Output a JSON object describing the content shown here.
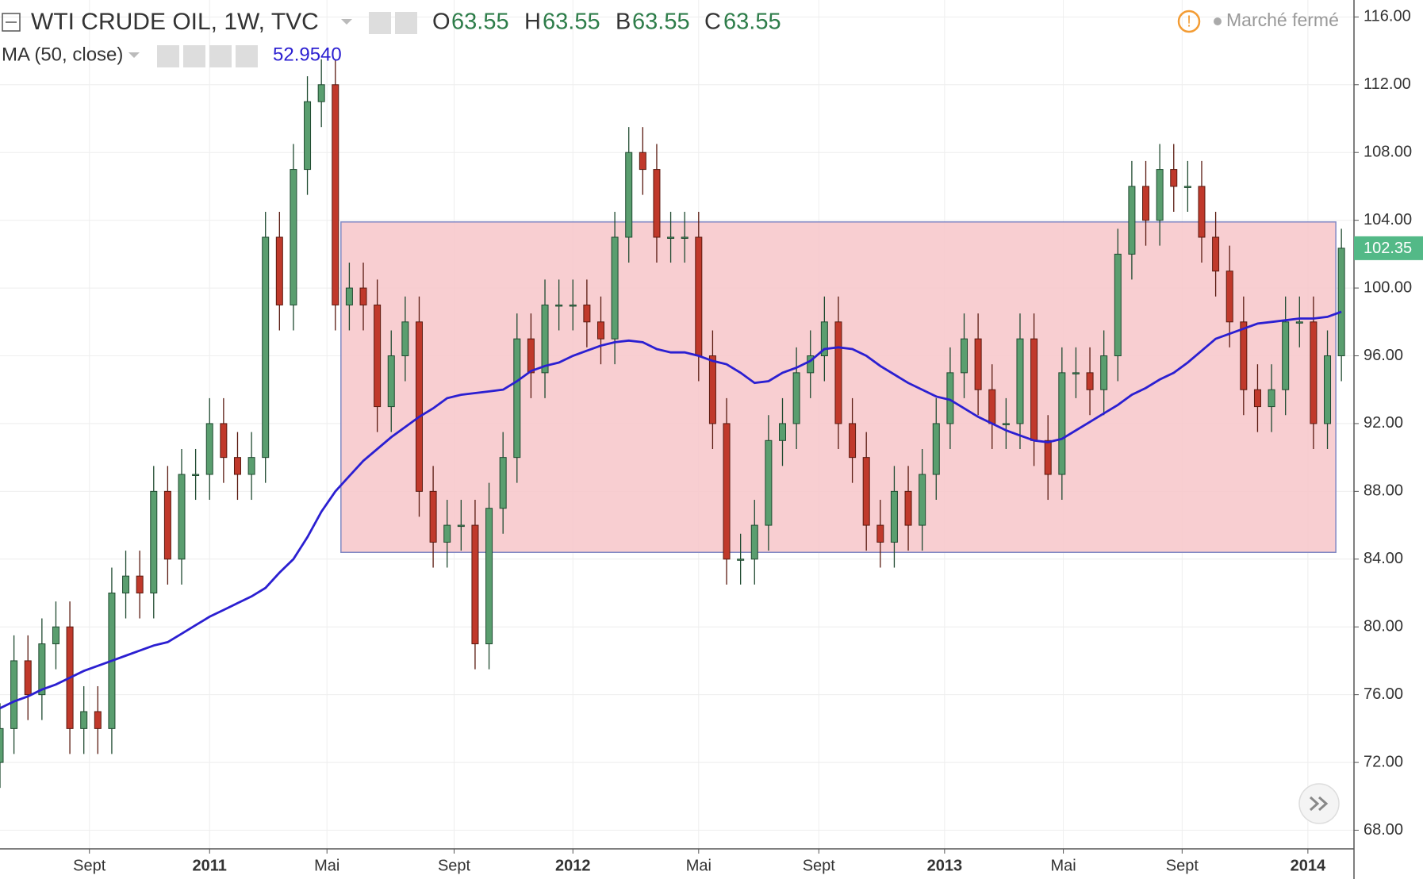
{
  "chart_data": {
    "type": "candlestick",
    "title": "WTI CRUDE OIL, 1W, TVC",
    "legend_ohlc": [
      {
        "label": "O",
        "value": 63.55
      },
      {
        "label": "H",
        "value": 63.55
      },
      {
        "label": "B",
        "value": 63.55
      },
      {
        "label": "C",
        "value": 63.55
      }
    ],
    "status": "Marché fermé",
    "up_color": "#5a9e6f",
    "down_color": "#c0392b",
    "grid": true,
    "xlim": [
      0,
      96.9
    ],
    "xticks": [
      {
        "value": 6.4,
        "label": "Sept"
      },
      {
        "value": 15,
        "label": "2011"
      },
      {
        "value": 23.4,
        "label": "Mai"
      },
      {
        "value": 32.5,
        "label": "Sept"
      },
      {
        "value": 41,
        "label": "2012"
      },
      {
        "value": 50,
        "label": "Mai"
      },
      {
        "value": 58.6,
        "label": "Sept"
      },
      {
        "value": 67.6,
        "label": "2013"
      },
      {
        "value": 76.1,
        "label": "Mai"
      },
      {
        "value": 84.6,
        "label": "Sept"
      },
      {
        "value": 93.6,
        "label": "2014"
      }
    ],
    "ylim": [
      66.9,
      117
    ],
    "yticks": [
      {
        "value": 68,
        "label": "68.00"
      },
      {
        "value": 72,
        "label": "72.00"
      },
      {
        "value": 76,
        "label": "76.00"
      },
      {
        "value": 80,
        "label": "80.00"
      },
      {
        "value": 84,
        "label": "84.00"
      },
      {
        "value": 88,
        "label": "88.00"
      },
      {
        "value": 92,
        "label": "92.00"
      },
      {
        "value": 96,
        "label": "96.00"
      },
      {
        "value": 100,
        "label": "100.00"
      },
      {
        "value": 104,
        "label": "104.00"
      },
      {
        "value": 108,
        "label": "108.00"
      },
      {
        "value": 112,
        "label": "112.00"
      },
      {
        "value": 116,
        "label": "116.00"
      }
    ],
    "last_price": 102.35,
    "range_box": {
      "x": [
        24.4,
        95.6
      ],
      "y": [
        84.4,
        103.9
      ],
      "fill": "#f7c6c9",
      "stroke": "#8088c4"
    },
    "ma": {
      "name": "MA (50, close)",
      "legend_value": "52.9540",
      "color": "#2b1fd1",
      "values": [
        75.2,
        75.6,
        75.9,
        76.3,
        76.6,
        77,
        77.4,
        77.7,
        78,
        78.3,
        78.6,
        78.9,
        79.1,
        79.6,
        80.1,
        80.6,
        81,
        81.4,
        81.8,
        82.3,
        83.2,
        84,
        85.3,
        86.8,
        88,
        88.9,
        89.8,
        90.5,
        91.2,
        91.8,
        92.4,
        92.9,
        93.5,
        93.7,
        93.8,
        93.9,
        94,
        94.5,
        95.1,
        95.4,
        95.6,
        96,
        96.3,
        96.6,
        96.8,
        96.9,
        96.8,
        96.4,
        96.2,
        96.2,
        96,
        95.7,
        95.5,
        95,
        94.4,
        94.5,
        95,
        95.3,
        95.7,
        96.4,
        96.5,
        96.4,
        96,
        95.4,
        94.9,
        94.4,
        94,
        93.6,
        93.4,
        92.9,
        92.4,
        92,
        91.6,
        91.3,
        91,
        90.9,
        91.1,
        91.6,
        92.1,
        92.6,
        93.1,
        93.7,
        94.1,
        94.6,
        95,
        95.6,
        96.3,
        97,
        97.3,
        97.6,
        97.9,
        98,
        98.1,
        98.2,
        98.2,
        98.3,
        98.6
      ]
    },
    "candles": {
      "open": [
        72,
        74,
        78,
        76,
        79,
        80,
        74,
        75,
        74,
        82,
        83,
        82,
        88,
        84,
        89,
        89,
        92,
        90,
        89,
        90,
        103,
        99,
        107,
        111,
        112,
        99,
        100,
        99,
        93,
        96,
        98,
        88,
        85,
        86,
        86,
        79,
        87,
        90,
        97,
        95,
        99,
        99,
        99,
        98,
        97,
        103,
        108,
        107,
        103,
        103,
        103,
        96,
        92,
        84,
        84,
        86,
        91,
        92,
        95,
        96,
        98,
        92,
        90,
        86,
        85,
        88,
        86,
        89,
        92,
        95,
        97,
        94,
        92,
        92,
        97,
        91,
        89,
        95,
        95,
        94,
        96,
        102,
        106,
        104,
        107,
        106,
        106,
        103,
        101,
        98,
        94,
        93,
        94,
        98,
        98,
        92,
        96
      ],
      "high": [
        75.5,
        79.5,
        79.5,
        80.5,
        81.5,
        81.5,
        76.5,
        76.5,
        83.5,
        84.5,
        84.5,
        89.5,
        89.5,
        90.5,
        90.5,
        93.5,
        93.5,
        91.5,
        91.5,
        104.5,
        104.5,
        108.5,
        112.5,
        113.5,
        113.5,
        101.5,
        101.5,
        100.5,
        97.5,
        99.5,
        99.5,
        89.5,
        87.5,
        87.5,
        87.5,
        88.5,
        91.5,
        98.5,
        98.5,
        100.5,
        100.5,
        100.5,
        100.5,
        99.5,
        104.5,
        109.5,
        109.5,
        108.5,
        104.5,
        104.5,
        104.5,
        97.5,
        93.5,
        85.5,
        87.5,
        92.5,
        93.5,
        96.5,
        97.5,
        99.5,
        99.5,
        93.5,
        91.5,
        87.5,
        89.5,
        89.5,
        90.5,
        93.5,
        96.5,
        98.5,
        98.5,
        95.5,
        93.5,
        98.5,
        98.5,
        92.5,
        96.5,
        96.5,
        96.5,
        97.5,
        103.5,
        107.5,
        107.5,
        108.5,
        108.5,
        107.5,
        107.5,
        104.5,
        102.5,
        99.5,
        95.5,
        95.5,
        99.5,
        99.5,
        99.5,
        97.5,
        103.5
      ],
      "low": [
        70.5,
        72.5,
        74.5,
        74.5,
        77.5,
        72.5,
        72.5,
        72.5,
        72.5,
        80.5,
        80.5,
        80.5,
        82.5,
        82.5,
        87.5,
        87.5,
        88.5,
        87.5,
        87.5,
        88.5,
        97.5,
        97.5,
        105.5,
        109.5,
        97.5,
        97.5,
        97.5,
        91.5,
        91.5,
        94.5,
        86.5,
        83.5,
        83.5,
        84.5,
        77.5,
        77.5,
        85.5,
        88.5,
        93.5,
        93.5,
        97.5,
        97.5,
        96.5,
        95.5,
        95.5,
        101.5,
        105.5,
        101.5,
        101.5,
        101.5,
        94.5,
        90.5,
        82.5,
        82.5,
        82.5,
        84.5,
        89.5,
        90.5,
        93.5,
        94.5,
        90.5,
        88.5,
        84.5,
        83.5,
        83.5,
        84.5,
        84.5,
        87.5,
        90.5,
        93.5,
        92.5,
        90.5,
        90.5,
        90.5,
        89.5,
        87.5,
        87.5,
        93.5,
        92.5,
        92.5,
        94.5,
        100.5,
        102.5,
        102.5,
        104.5,
        104.5,
        101.5,
        99.5,
        96.5,
        92.5,
        91.5,
        91.5,
        92.5,
        96.5,
        90.5,
        90.5,
        94.5
      ],
      "close": [
        74,
        78,
        76,
        79,
        80,
        74,
        75,
        74,
        82,
        83,
        82,
        88,
        84,
        89,
        89,
        92,
        90,
        89,
        90,
        103,
        99,
        107,
        111,
        112,
        99,
        100,
        99,
        93,
        96,
        98,
        88,
        85,
        86,
        86,
        79,
        87,
        90,
        97,
        95,
        99,
        99,
        99,
        98,
        97,
        103,
        108,
        107,
        103,
        103,
        103,
        96,
        92,
        84,
        84,
        86,
        91,
        92,
        95,
        96,
        98,
        92,
        90,
        86,
        85,
        88,
        86,
        89,
        92,
        95,
        97,
        94,
        92,
        92,
        97,
        91,
        89,
        95,
        95,
        94,
        96,
        102,
        106,
        104,
        107,
        106,
        106,
        103,
        101,
        98,
        94,
        93,
        94,
        98,
        98,
        92,
        96,
        102.35
      ]
    }
  }
}
